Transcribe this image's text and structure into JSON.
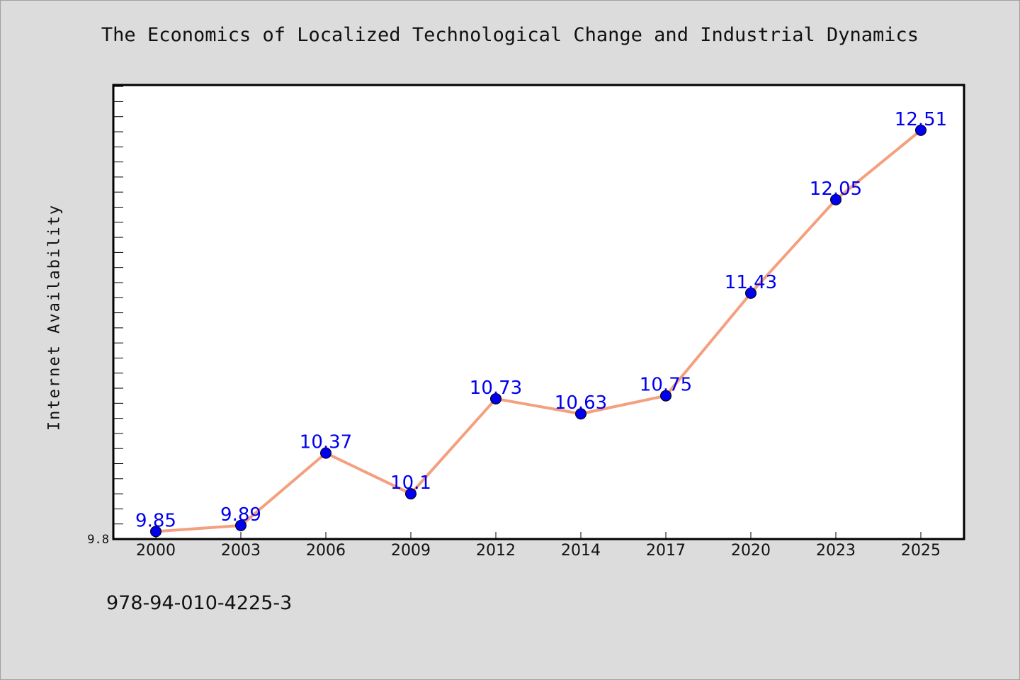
{
  "chart_data": {
    "type": "line",
    "title": "The Economics of Localized Technological Change and Industrial Dynamics",
    "xlabel": "",
    "ylabel": "Internet Availability",
    "categories": [
      "2000",
      "2003",
      "2006",
      "2009",
      "2012",
      "2014",
      "2017",
      "2020",
      "2023",
      "2025"
    ],
    "series": [
      {
        "values": [
          9.85,
          9.89,
          10.37,
          10.1,
          10.73,
          10.63,
          10.75,
          11.43,
          12.05,
          12.51
        ]
      }
    ],
    "data_labels": [
      "9.85",
      "9.89",
      "10.37",
      "10.1",
      "10.73",
      "10.63",
      "10.75",
      "11.43",
      "12.05",
      "12.51"
    ],
    "y_tick_labels": [
      "9.8"
    ],
    "ylim": [
      9.8,
      12.81
    ],
    "y_minor_step": 0.1,
    "grid": false,
    "line_color": "#f4a07e",
    "marker_color": "#0000ee",
    "label_color": "#0000ee"
  },
  "footer_text": "978-94-010-4225-3"
}
